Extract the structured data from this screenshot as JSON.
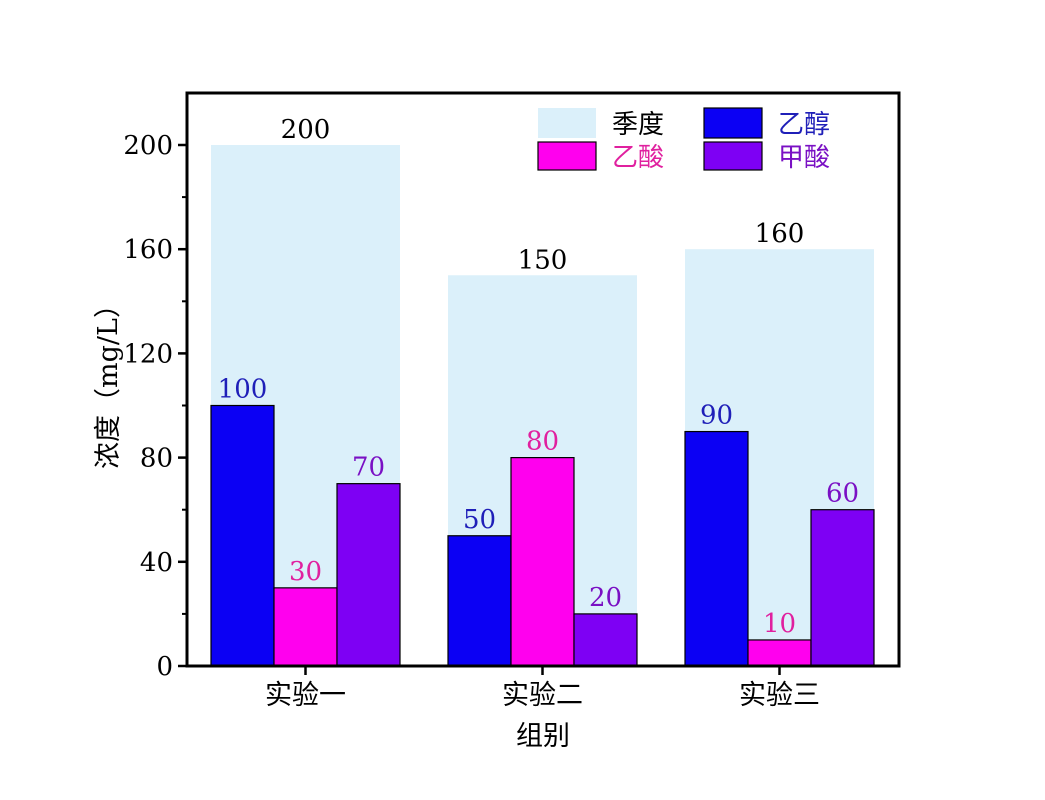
{
  "chart_data": {
    "type": "bar",
    "xlabel": "组别",
    "ylabel": "浓度（mg/L）",
    "categories": [
      "实验一",
      "实验二",
      "实验三"
    ],
    "ylim": [
      0,
      220
    ],
    "yticks": [
      "0",
      "40",
      "80",
      "120",
      "160",
      "200"
    ],
    "background_series": {
      "name": "季度",
      "color": "#dbf0fa",
      "values": [
        200,
        150,
        160
      ],
      "labels": [
        "200",
        "150",
        "160"
      ]
    },
    "series": [
      {
        "name": "乙醇",
        "color": "#0b00f4",
        "label_color": "#1f1fb8",
        "values": [
          100,
          50,
          90
        ],
        "labels": [
          "100",
          "50",
          "90"
        ]
      },
      {
        "name": "乙酸",
        "color": "#ff00ee",
        "label_color": "#e0209f",
        "values": [
          30,
          80,
          10
        ],
        "labels": [
          "30",
          "80",
          "10"
        ]
      },
      {
        "name": "甲酸",
        "color": "#7e00f4",
        "label_color": "#7a10c4",
        "values": [
          70,
          20,
          60
        ],
        "labels": [
          "70",
          "20",
          "60"
        ]
      }
    ],
    "legend": "top-right",
    "grid": false
  }
}
